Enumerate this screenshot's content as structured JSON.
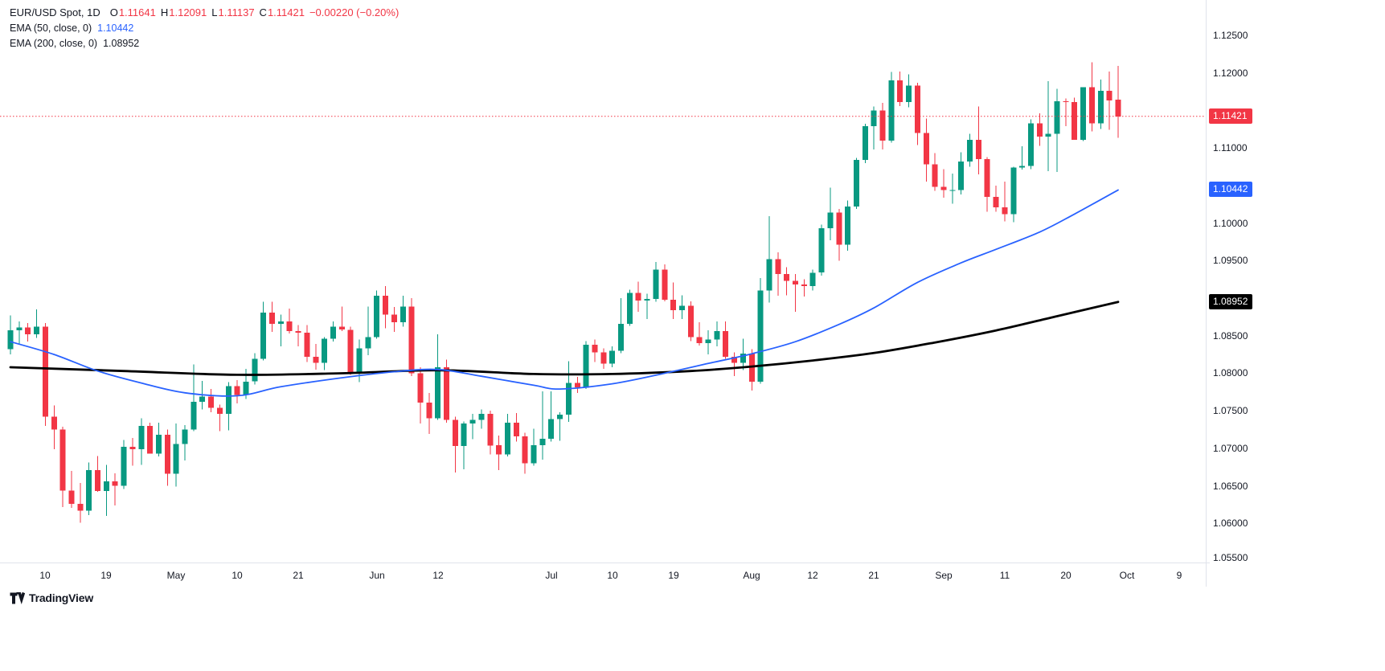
{
  "legend": {
    "symbol": "EUR/USD Spot, 1D",
    "ohlc": {
      "o_label": "O",
      "o": "1.11641",
      "h_label": "H",
      "h": "1.12091",
      "l_label": "L",
      "l": "1.11137",
      "c_label": "C",
      "c": "1.11421",
      "change": "−0.00220 (−0.20%)"
    },
    "ema50": {
      "label": "EMA (50, close, 0)",
      "value": "1.10442"
    },
    "ema200": {
      "label": "EMA (200, close, 0)",
      "value": "1.08952"
    }
  },
  "logo": {
    "text": "TradingView"
  },
  "chart_data": {
    "type": "candlestick",
    "title": "EUR/USD Spot",
    "timeframe": "1D",
    "last": {
      "open": 1.11641,
      "high": 1.12091,
      "low": 1.11137,
      "close": 1.11421,
      "change": -0.0022,
      "change_pct": -0.2
    },
    "ylim": [
      1.0548,
      1.1297
    ],
    "y_ticks": [
      "1.05500",
      "1.06000",
      "1.06500",
      "1.07000",
      "1.07500",
      "1.08000",
      "1.08500",
      "1.09000",
      "1.09500",
      "1.10000",
      "1.10500",
      "1.11000",
      "1.11500",
      "1.12000",
      "1.12500"
    ],
    "x_ticks": [
      {
        "i": 4,
        "label": "10"
      },
      {
        "i": 11,
        "label": "19"
      },
      {
        "i": 19,
        "label": "May"
      },
      {
        "i": 26,
        "label": "10"
      },
      {
        "i": 33,
        "label": "21"
      },
      {
        "i": 42,
        "label": "Jun"
      },
      {
        "i": 49,
        "label": "12"
      },
      {
        "i": 62,
        "label": "Jul"
      },
      {
        "i": 69,
        "label": "10"
      },
      {
        "i": 76,
        "label": "19"
      },
      {
        "i": 85,
        "label": "Aug"
      },
      {
        "i": 92,
        "label": "12"
      },
      {
        "i": 99,
        "label": "21"
      },
      {
        "i": 107,
        "label": "Sep"
      },
      {
        "i": 114,
        "label": "11"
      },
      {
        "i": 121,
        "label": "20"
      },
      {
        "i": 128,
        "label": "Oct"
      },
      {
        "i": 134,
        "label": "9"
      }
    ],
    "colors": {
      "up": "#089981",
      "down": "#F23645"
    },
    "price_line": {
      "value": 1.11421,
      "color": "#F23645"
    },
    "badges": [
      {
        "name": "last-price",
        "text": "1.11421",
        "value": 1.11421,
        "color": "#F23645"
      },
      {
        "name": "ema-50",
        "text": "1.10442",
        "value": 1.10442,
        "color": "#2962FF"
      },
      {
        "name": "ema-200",
        "text": "1.08952",
        "value": 1.08952,
        "color": "#000000"
      }
    ],
    "ema50": {
      "label": "EMA (50, close, 0)",
      "last": 1.10442,
      "color": "#2962FF",
      "points": [
        [
          0,
          1.0842
        ],
        [
          5,
          1.0825
        ],
        [
          10,
          1.0803
        ],
        [
          15,
          1.0787
        ],
        [
          20,
          1.0774
        ],
        [
          26,
          1.077
        ],
        [
          31,
          1.0782
        ],
        [
          38,
          1.0794
        ],
        [
          44,
          1.0802
        ],
        [
          49,
          1.0805
        ],
        [
          54,
          1.0796
        ],
        [
          60,
          1.0784
        ],
        [
          63,
          1.0779
        ],
        [
          69,
          1.0786
        ],
        [
          75,
          1.08
        ],
        [
          80,
          1.0813
        ],
        [
          85,
          1.0826
        ],
        [
          90,
          1.0842
        ],
        [
          95,
          1.0865
        ],
        [
          99,
          1.0887
        ],
        [
          104,
          1.0921
        ],
        [
          109,
          1.0947
        ],
        [
          113,
          1.0965
        ],
        [
          118,
          1.0988
        ],
        [
          122,
          1.1012
        ],
        [
          127,
          1.1044
        ]
      ]
    },
    "ema200": {
      "label": "EMA (200, close, 0)",
      "last": 1.08952,
      "color": "#000000",
      "points": [
        [
          0,
          1.0808
        ],
        [
          13,
          1.0803
        ],
        [
          26,
          1.0798
        ],
        [
          38,
          1.08
        ],
        [
          49,
          1.0804
        ],
        [
          60,
          1.0799
        ],
        [
          69,
          1.0799
        ],
        [
          78,
          1.0803
        ],
        [
          85,
          1.0809
        ],
        [
          92,
          1.0817
        ],
        [
          99,
          1.0827
        ],
        [
          106,
          1.0841
        ],
        [
          113,
          1.0857
        ],
        [
          120,
          1.0876
        ],
        [
          127,
          1.0895
        ]
      ]
    },
    "candles": [
      [
        1.0832,
        1.0877,
        1.0825,
        1.0857
      ],
      [
        1.0857,
        1.0869,
        1.0838,
        1.0861
      ],
      [
        1.0861,
        1.0867,
        1.0842,
        1.0852
      ],
      [
        1.0852,
        1.0885,
        1.0847,
        1.0862
      ],
      [
        1.0862,
        1.0867,
        1.073,
        1.0742
      ],
      [
        1.0742,
        1.0757,
        1.0699,
        1.0725
      ],
      [
        1.0725,
        1.0729,
        1.0622,
        1.0644
      ],
      [
        1.0644,
        1.067,
        1.0621,
        1.0626
      ],
      [
        1.0626,
        1.0654,
        1.0601,
        1.0617
      ],
      [
        1.0617,
        1.0681,
        1.0611,
        1.0671
      ],
      [
        1.0671,
        1.069,
        1.0642,
        1.0643
      ],
      [
        1.0643,
        1.0678,
        1.061,
        1.0656
      ],
      [
        1.0656,
        1.0667,
        1.0624,
        1.065
      ],
      [
        1.065,
        1.0711,
        1.0646,
        1.0702
      ],
      [
        1.0702,
        1.0714,
        1.0677,
        1.0699
      ],
      [
        1.0699,
        1.074,
        1.0678,
        1.073
      ],
      [
        1.073,
        1.0734,
        1.0693,
        1.0693
      ],
      [
        1.0693,
        1.0734,
        1.0689,
        1.0718
      ],
      [
        1.0718,
        1.0725,
        1.065,
        1.0666
      ],
      [
        1.0666,
        1.0733,
        1.0649,
        1.0706
      ],
      [
        1.0706,
        1.0731,
        1.0684,
        1.0725
      ],
      [
        1.0725,
        1.0812,
        1.0723,
        1.0762
      ],
      [
        1.0762,
        1.079,
        1.0752,
        1.0769
      ],
      [
        1.0769,
        1.0779,
        1.0748,
        1.0754
      ],
      [
        1.0754,
        1.0758,
        1.0723,
        1.0746
      ],
      [
        1.0746,
        1.0788,
        1.0724,
        1.0783
      ],
      [
        1.0783,
        1.0791,
        1.076,
        1.0771
      ],
      [
        1.0771,
        1.0806,
        1.0766,
        1.0789
      ],
      [
        1.0789,
        1.0827,
        1.0785,
        1.0819
      ],
      [
        1.0819,
        1.0895,
        1.0817,
        1.0881
      ],
      [
        1.0881,
        1.0895,
        1.0855,
        1.0866
      ],
      [
        1.0866,
        1.0878,
        1.0836,
        1.0869
      ],
      [
        1.0869,
        1.0886,
        1.0853,
        1.0856
      ],
      [
        1.0856,
        1.0864,
        1.0836,
        1.0854
      ],
      [
        1.0854,
        1.0864,
        1.0815,
        1.0822
      ],
      [
        1.0822,
        1.0839,
        1.0805,
        1.0814
      ],
      [
        1.0814,
        1.0848,
        1.0804,
        1.0846
      ],
      [
        1.0846,
        1.0869,
        1.0842,
        1.0862
      ],
      [
        1.0862,
        1.0889,
        1.0856,
        1.0858
      ],
      [
        1.0858,
        1.0862,
        1.0798,
        1.0801
      ],
      [
        1.0801,
        1.0845,
        1.0788,
        1.0833
      ],
      [
        1.0833,
        1.0889,
        1.0824,
        1.0848
      ],
      [
        1.0848,
        1.091,
        1.0846,
        1.0903
      ],
      [
        1.0903,
        1.0916,
        1.086,
        1.0878
      ],
      [
        1.0878,
        1.0888,
        1.0855,
        1.0868
      ],
      [
        1.0868,
        1.0903,
        1.0862,
        1.0889
      ],
      [
        1.0889,
        1.09,
        1.0796,
        1.08
      ],
      [
        1.08,
        1.0808,
        1.0733,
        1.0761
      ],
      [
        1.0761,
        1.0774,
        1.0719,
        1.074
      ],
      [
        1.074,
        1.0852,
        1.0738,
        1.0808
      ],
      [
        1.0808,
        1.0818,
        1.0734,
        1.0738
      ],
      [
        1.0738,
        1.0742,
        1.0668,
        1.0703
      ],
      [
        1.0703,
        1.0736,
        1.0672,
        1.0733
      ],
      [
        1.0733,
        1.0746,
        1.0712,
        1.0738
      ],
      [
        1.0738,
        1.0752,
        1.0726,
        1.0746
      ],
      [
        1.0746,
        1.075,
        1.0692,
        1.0704
      ],
      [
        1.0704,
        1.0717,
        1.0671,
        1.0692
      ],
      [
        1.0692,
        1.0746,
        1.0689,
        1.0734
      ],
      [
        1.0734,
        1.0747,
        1.0709,
        1.0716
      ],
      [
        1.0716,
        1.0721,
        1.0666,
        1.068
      ],
      [
        1.068,
        1.0726,
        1.0677,
        1.0704
      ],
      [
        1.0704,
        1.0776,
        1.0685,
        1.0713
      ],
      [
        1.0713,
        1.0776,
        1.0709,
        1.0739
      ],
      [
        1.0739,
        1.0748,
        1.071,
        1.0745
      ],
      [
        1.0745,
        1.0816,
        1.0735,
        1.0787
      ],
      [
        1.0787,
        1.0795,
        1.0774,
        1.0781
      ],
      [
        1.0781,
        1.0843,
        1.0779,
        1.0838
      ],
      [
        1.0838,
        1.0845,
        1.0815,
        1.0828
      ],
      [
        1.0828,
        1.0833,
        1.0806,
        1.0813
      ],
      [
        1.0813,
        1.0836,
        1.0808,
        1.083
      ],
      [
        1.083,
        1.09,
        1.0827,
        1.0866
      ],
      [
        1.0866,
        1.0911,
        1.0863,
        1.0907
      ],
      [
        1.0907,
        1.0922,
        1.0882,
        1.0897
      ],
      [
        1.0897,
        1.0906,
        1.0872,
        1.0899
      ],
      [
        1.0899,
        1.0948,
        1.0895,
        1.0938
      ],
      [
        1.0938,
        1.0945,
        1.0896,
        1.0898
      ],
      [
        1.0898,
        1.0921,
        1.0872,
        1.0884
      ],
      [
        1.0884,
        1.0904,
        1.0872,
        1.089
      ],
      [
        1.089,
        1.0896,
        1.0843,
        1.0848
      ],
      [
        1.0848,
        1.0868,
        1.0837,
        1.084
      ],
      [
        1.084,
        1.0857,
        1.0825,
        1.0845
      ],
      [
        1.0845,
        1.0869,
        1.0836,
        1.0856
      ],
      [
        1.0856,
        1.0869,
        1.0819,
        1.0822
      ],
      [
        1.0822,
        1.0828,
        1.0796,
        1.0814
      ],
      [
        1.0814,
        1.0846,
        1.0804,
        1.0826
      ],
      [
        1.0826,
        1.0832,
        1.0777,
        1.0789
      ],
      [
        1.0789,
        1.0927,
        1.0786,
        1.091
      ],
      [
        1.091,
        1.1009,
        1.0894,
        1.0952
      ],
      [
        1.0952,
        1.0961,
        1.0903,
        1.0932
      ],
      [
        1.0932,
        1.0941,
        1.0904,
        1.0923
      ],
      [
        1.0923,
        1.0932,
        1.0882,
        1.0918
      ],
      [
        1.0918,
        1.0925,
        1.0902,
        1.0916
      ],
      [
        1.0916,
        1.0938,
        1.091,
        1.0934
      ],
      [
        1.0934,
        1.0998,
        1.093,
        1.0993
      ],
      [
        1.0993,
        1.1047,
        1.0977,
        1.1014
      ],
      [
        1.1014,
        1.1019,
        1.095,
        1.0971
      ],
      [
        1.0971,
        1.103,
        1.0963,
        1.1022
      ],
      [
        1.1022,
        1.1087,
        1.1019,
        1.1084
      ],
      [
        1.1084,
        1.1132,
        1.108,
        1.1129
      ],
      [
        1.1129,
        1.1155,
        1.1098,
        1.115
      ],
      [
        1.115,
        1.116,
        1.1098,
        1.111
      ],
      [
        1.111,
        1.1201,
        1.1107,
        1.119
      ],
      [
        1.119,
        1.1202,
        1.1156,
        1.1161
      ],
      [
        1.1161,
        1.1198,
        1.1154,
        1.1183
      ],
      [
        1.1183,
        1.1187,
        1.1104,
        1.112
      ],
      [
        1.112,
        1.1139,
        1.1055,
        1.1078
      ],
      [
        1.1078,
        1.1093,
        1.1043,
        1.1048
      ],
      [
        1.1048,
        1.1072,
        1.1034,
        1.1044
      ],
      [
        1.1044,
        1.1066,
        1.1026,
        1.1044
      ],
      [
        1.1044,
        1.1094,
        1.1038,
        1.1082
      ],
      [
        1.1082,
        1.1119,
        1.1075,
        1.1111
      ],
      [
        1.1111,
        1.1155,
        1.1065,
        1.1085
      ],
      [
        1.1085,
        1.1088,
        1.1015,
        1.1035
      ],
      [
        1.1035,
        1.105,
        1.1015,
        1.1021
      ],
      [
        1.1021,
        1.1055,
        1.1002,
        1.1012
      ],
      [
        1.1012,
        1.1075,
        1.1001,
        1.1074
      ],
      [
        1.1074,
        1.1102,
        1.1071,
        1.1076
      ],
      [
        1.1076,
        1.1138,
        1.1072,
        1.1133
      ],
      [
        1.1133,
        1.1146,
        1.1103,
        1.1115
      ],
      [
        1.1115,
        1.1189,
        1.1069,
        1.1119
      ],
      [
        1.1119,
        1.1179,
        1.1068,
        1.1162
      ],
      [
        1.1162,
        1.1166,
        1.1129,
        1.1161
      ],
      [
        1.1161,
        1.1167,
        1.1111,
        1.1111
      ],
      [
        1.1111,
        1.1181,
        1.1109,
        1.1181
      ],
      [
        1.1181,
        1.1214,
        1.1122,
        1.1133
      ],
      [
        1.1133,
        1.1191,
        1.1125,
        1.1176
      ],
      [
        1.1176,
        1.1202,
        1.1124,
        1.1163
      ],
      [
        1.11641,
        1.12091,
        1.11137,
        1.11421
      ]
    ]
  }
}
